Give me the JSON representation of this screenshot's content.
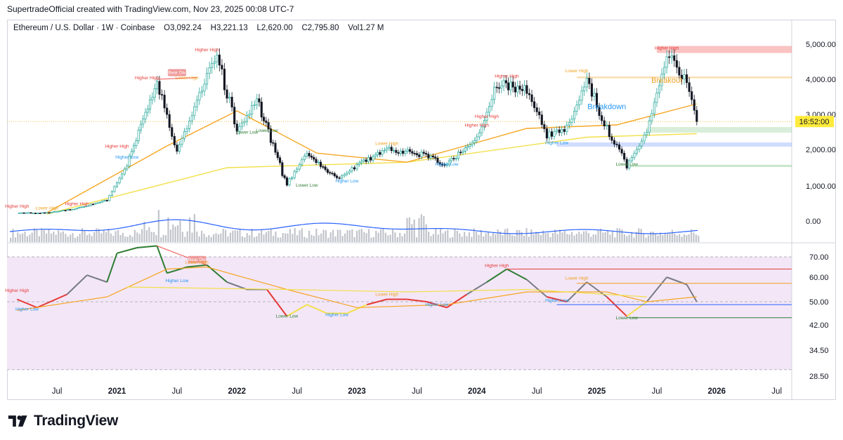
{
  "caption": "SupertradeOfficial created with TradingView.com, Nov 23, 2025 00:08 UTC-7",
  "legend": {
    "symbol": "Ethereum / U.S. Dollar · 1W · Coinbase",
    "open": "O3,092.24",
    "high": "H3,221.13",
    "low": "L2,620.00",
    "close": "C2,795.80",
    "volume": "Vol1.27 M"
  },
  "brand": {
    "name": "TradingView",
    "logo_icon": "tradingview-logo-icon"
  },
  "colors": {
    "up": "#26a69a",
    "down": "#131722",
    "ema_fast": "#f5a623",
    "ema_slow": "#f2e04a",
    "volume": "#b2b5be",
    "volume_ma": "#2962ff",
    "rsi_zone": "#f3e6f7",
    "high_label": "#e53935",
    "low_label": "#2196f3",
    "lower_high": "#f0a020",
    "accent": "#ffeb3b"
  },
  "chart_data": [
    {
      "type": "candlestick",
      "title": "Ethereum / U.S. Dollar · 1W · Coinbase",
      "y_scale": "log",
      "y_ticks": [
        "5,000.00",
        "4,000.00",
        "3,000.00",
        "2,000.00",
        "1,000.00",
        "0.00"
      ],
      "y_tick_values": [
        5000,
        4000,
        3000,
        2000,
        1000,
        0
      ],
      "x_ticks": [
        "Jul",
        "2021",
        "Jul",
        "2022",
        "Jul",
        "2023",
        "Jul",
        "2024",
        "Jul",
        "2025",
        "Jul",
        "2026",
        "Jul"
      ],
      "last_price_label": "16:52:00",
      "last_price": 2795.8,
      "close_path": [
        [
          "2020-03",
          230
        ],
        [
          "2020-06",
          235
        ],
        [
          "2020-09",
          360
        ],
        [
          "2020-12",
          600
        ],
        [
          "2021-02",
          1600
        ],
        [
          "2021-05",
          3900
        ],
        [
          "2021-07",
          1900
        ],
        [
          "2021-09",
          3400
        ],
        [
          "2021-11",
          4700
        ],
        [
          "2022-01",
          2500
        ],
        [
          "2022-03",
          3400
        ],
        [
          "2022-06",
          1050
        ],
        [
          "2022-08",
          1900
        ],
        [
          "2022-11",
          1200
        ],
        [
          "2023-01",
          1550
        ],
        [
          "2023-04",
          2000
        ],
        [
          "2023-07",
          1900
        ],
        [
          "2023-10",
          1600
        ],
        [
          "2024-01",
          2300
        ],
        [
          "2024-03",
          3900
        ],
        [
          "2024-06",
          3700
        ],
        [
          "2024-08",
          2400
        ],
        [
          "2024-10",
          2600
        ],
        [
          "2024-12",
          4000
        ],
        [
          "2025-02",
          2600
        ],
        [
          "2025-04",
          1550
        ],
        [
          "2025-06",
          2500
        ],
        [
          "2025-08",
          4700
        ],
        [
          "2025-10",
          4000
        ],
        [
          "2025-11",
          2795.8
        ]
      ],
      "series": [
        {
          "name": "EMA fast",
          "values": [
            [
              "2020-06",
              240
            ],
            [
              "2021-06",
              2100
            ],
            [
              "2022-01",
              3100
            ],
            [
              "2022-09",
              1900
            ],
            [
              "2023-06",
              1650
            ],
            [
              "2024-06",
              2600
            ],
            [
              "2025-03",
              2700
            ],
            [
              "2025-11",
              3300
            ]
          ]
        },
        {
          "name": "EMA slow",
          "values": [
            [
              "2020-06",
              200
            ],
            [
              "2021-12",
              1500
            ],
            [
              "2023-06",
              1650
            ],
            [
              "2024-12",
              2350
            ],
            [
              "2025-11",
              2450
            ]
          ]
        }
      ],
      "annotations": [
        {
          "text": "Higher High",
          "kind": "high",
          "x": "2020-03",
          "y": 380
        },
        {
          "text": "Lower High",
          "kind": "lower-high",
          "x": "2020-06",
          "y": 330
        },
        {
          "text": "Higher High",
          "kind": "high",
          "x": "2020-09",
          "y": 450
        },
        {
          "text": "Higher High",
          "kind": "high",
          "x": "2021-01",
          "y": 2050
        },
        {
          "text": "Higher Low",
          "kind": "low",
          "x": "2021-02",
          "y": 1750
        },
        {
          "text": "Higher High",
          "kind": "high",
          "x": "2021-04",
          "y": 4000
        },
        {
          "text": "Bear Div",
          "kind": "div",
          "x": "2021-07",
          "y": 4150
        },
        {
          "text": "Lower High",
          "kind": "lower-high",
          "x": "2021-08",
          "y": 4000
        },
        {
          "text": "Higher High",
          "kind": "high",
          "x": "2021-10",
          "y": 4800
        },
        {
          "text": "Lower Low",
          "kind": "low",
          "x": "2022-02",
          "y": 2450
        },
        {
          "text": "Lower Low",
          "kind": "low",
          "x": "2022-04",
          "y": 2500
        },
        {
          "text": "Lower Low",
          "kind": "low",
          "x": "2022-08",
          "y": 980
        },
        {
          "text": "Lower High",
          "kind": "lower-high",
          "x": "2023-04",
          "y": 2130
        },
        {
          "text": "Higher Low",
          "kind": "low",
          "x": "2022-12",
          "y": 1100
        },
        {
          "text": "Higher Low",
          "kind": "low",
          "x": "2023-10",
          "y": 1560
        },
        {
          "text": "Higher High",
          "kind": "high",
          "x": "2024-01",
          "y": 2650
        },
        {
          "text": "Higher High",
          "kind": "high",
          "x": "2024-02",
          "y": 2900
        },
        {
          "text": "Higher High",
          "kind": "high",
          "x": "2024-04",
          "y": 4050
        },
        {
          "text": "Higher Low",
          "kind": "low",
          "x": "2024-09",
          "y": 2150
        },
        {
          "text": "Lower High",
          "kind": "lower-high",
          "x": "2024-11",
          "y": 4200
        },
        {
          "text": "Breakdown",
          "kind": "big-blue",
          "x": "2025-02",
          "y": 3150
        },
        {
          "text": "Lower Low",
          "kind": "low",
          "x": "2025-04",
          "y": 1560
        },
        {
          "text": "Higher High",
          "kind": "high",
          "x": "2025-08",
          "y": 4850
        },
        {
          "text": "Breakout",
          "kind": "big-orange",
          "x": "2025-08",
          "y": 3900
        }
      ]
    },
    {
      "type": "line",
      "title": "RSI",
      "y_ticks": [
        "70.00",
        "60.00",
        "50.00",
        "42.00",
        "34.50",
        "28.50"
      ],
      "y_tick_values": [
        70,
        60,
        50,
        42,
        34.5,
        28.5
      ],
      "series": [
        {
          "name": "RSI",
          "values": [
            [
              "2020-03",
              51
            ],
            [
              "2020-05",
              48
            ],
            [
              "2020-08",
              53
            ],
            [
              "2020-10",
              61
            ],
            [
              "2020-12",
              58
            ],
            [
              "2021-01",
              72
            ],
            [
              "2021-03",
              75
            ],
            [
              "2021-05",
              76
            ],
            [
              "2021-06",
              62
            ],
            [
              "2021-08",
              65
            ],
            [
              "2021-10",
              66
            ],
            [
              "2021-12",
              58
            ],
            [
              "2022-02",
              55
            ],
            [
              "2022-04",
              55
            ],
            [
              "2022-06",
              45
            ],
            [
              "2022-08",
              49
            ],
            [
              "2022-10",
              46
            ],
            [
              "2022-12",
              46
            ],
            [
              "2023-02",
              49
            ],
            [
              "2023-04",
              51
            ],
            [
              "2023-06",
              51
            ],
            [
              "2023-08",
              50
            ],
            [
              "2023-10",
              48
            ],
            [
              "2023-12",
              53
            ],
            [
              "2024-02",
              58
            ],
            [
              "2024-04",
              64
            ],
            [
              "2024-06",
              59
            ],
            [
              "2024-08",
              52
            ],
            [
              "2024-10",
              50
            ],
            [
              "2024-12",
              58
            ],
            [
              "2025-02",
              52
            ],
            [
              "2025-04",
              45
            ],
            [
              "2025-06",
              50
            ],
            [
              "2025-08",
              60
            ],
            [
              "2025-10",
              57
            ],
            [
              "2025-11",
              50
            ]
          ]
        }
      ],
      "annotations": [
        {
          "text": "Higher High",
          "kind": "high",
          "x": "2020-03",
          "y": 54
        },
        {
          "text": "Higher Low",
          "kind": "low",
          "x": "2020-04",
          "y": 47
        },
        {
          "text": "Bear Div",
          "kind": "div",
          "x": "2021-09",
          "y": 68
        },
        {
          "text": "Lower High",
          "kind": "lower-high",
          "x": "2021-09",
          "y": 66.5
        },
        {
          "text": "Higher Low",
          "kind": "low",
          "x": "2021-07",
          "y": 58
        },
        {
          "text": "Lower Low",
          "kind": "low",
          "x": "2022-06",
          "y": 44.5
        },
        {
          "text": "Higher Low",
          "kind": "low",
          "x": "2022-11",
          "y": 45
        },
        {
          "text": "Lower High",
          "kind": "lower-high",
          "x": "2023-04",
          "y": 52.5
        },
        {
          "text": "Higher Low",
          "kind": "low",
          "x": "2023-09",
          "y": 48.5
        },
        {
          "text": "Higher High",
          "kind": "high",
          "x": "2024-03",
          "y": 65
        },
        {
          "text": "Higher Low",
          "kind": "low",
          "x": "2024-09",
          "y": 50
        },
        {
          "text": "Lower High",
          "kind": "lower-high",
          "x": "2024-11",
          "y": 59
        },
        {
          "text": "Lower Low",
          "kind": "low",
          "x": "2025-04",
          "y": 44
        }
      ]
    }
  ]
}
